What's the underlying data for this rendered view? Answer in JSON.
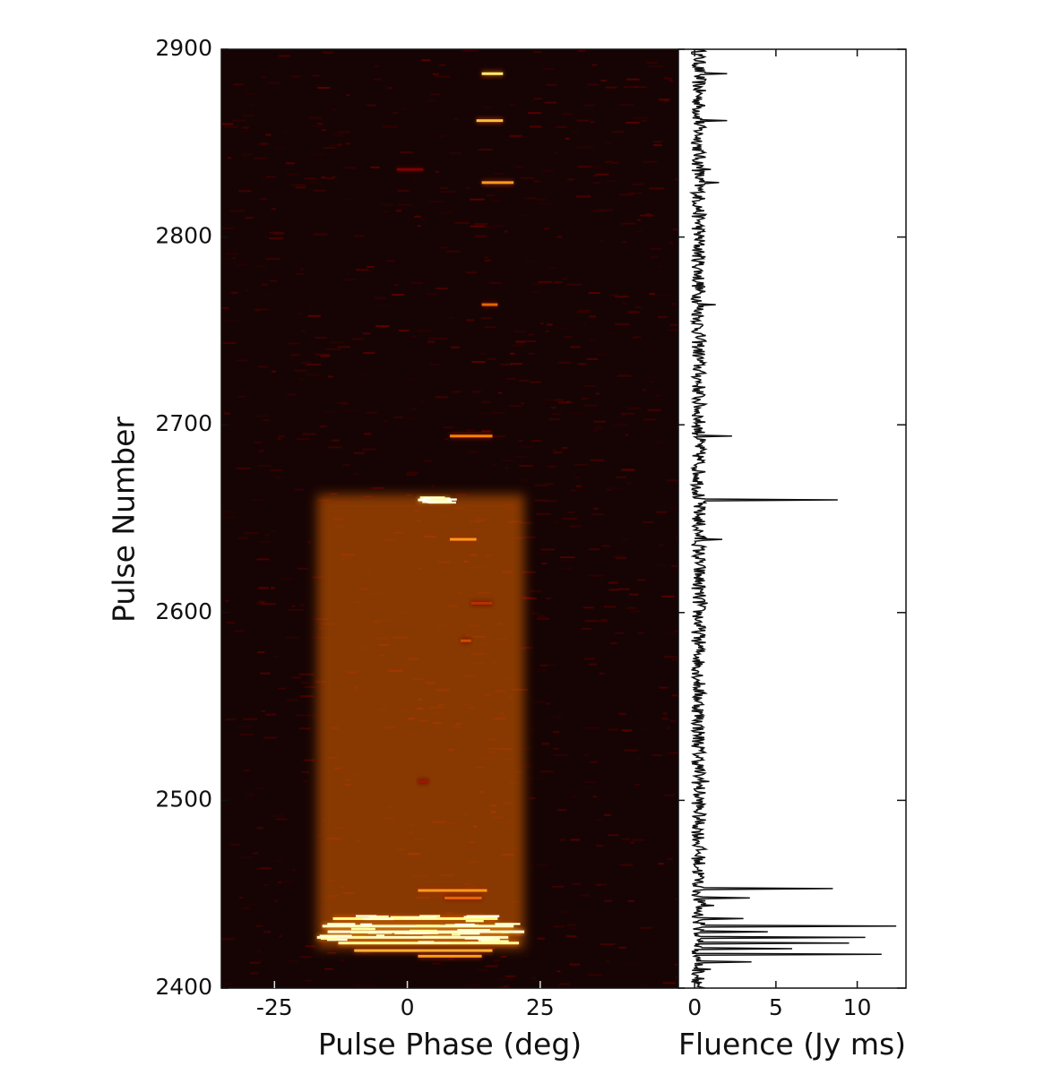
{
  "chart_data": [
    {
      "type": "heatmap",
      "xlabel": "Pulse Phase (deg)",
      "ylabel": "Pulse Number",
      "xlim": [
        -35,
        51
      ],
      "ylim": [
        2400,
        2900
      ],
      "xticks": [
        -25,
        0,
        25
      ],
      "yticks": [
        2400,
        2500,
        2600,
        2700,
        2800,
        2900
      ],
      "colormap": "afmhot",
      "background_color": "#160404",
      "bursts": [
        {
          "pulse": 2887,
          "phase_start": 14,
          "phase_end": 18,
          "intensity": 0.72
        },
        {
          "pulse": 2862,
          "phase_start": 13,
          "phase_end": 18,
          "intensity": 0.62
        },
        {
          "pulse": 2836,
          "phase_start": -2,
          "phase_end": 3,
          "intensity": 0.25
        },
        {
          "pulse": 2829,
          "phase_start": 14,
          "phase_end": 20,
          "intensity": 0.55
        },
        {
          "pulse": 2764,
          "phase_start": 14,
          "phase_end": 17,
          "intensity": 0.45
        },
        {
          "pulse": 2694,
          "phase_start": 8,
          "phase_end": 16,
          "intensity": 0.5
        },
        {
          "pulse": 2660,
          "phase_start": 2,
          "phase_end": 8,
          "intensity": 1.0
        },
        {
          "pulse": 2639,
          "phase_start": 8,
          "phase_end": 13,
          "intensity": 0.55
        },
        {
          "pulse": 2605,
          "phase_start": 12,
          "phase_end": 16,
          "intensity": 0.35
        },
        {
          "pulse": 2585,
          "phase_start": 10,
          "phase_end": 12,
          "intensity": 0.4
        },
        {
          "pulse": 2510,
          "phase_start": 2,
          "phase_end": 4,
          "intensity": 0.3
        },
        {
          "pulse": 2452,
          "phase_start": 2,
          "phase_end": 15,
          "intensity": 0.55
        },
        {
          "pulse": 2448,
          "phase_start": 7,
          "phase_end": 14,
          "intensity": 0.45
        },
        {
          "pulse": 2437,
          "phase_start": -14,
          "phase_end": 17,
          "intensity": 0.75
        },
        {
          "pulse": 2433,
          "phase_start": -16,
          "phase_end": 20,
          "intensity": 0.9
        },
        {
          "pulse": 2430,
          "phase_start": -15,
          "phase_end": 22,
          "intensity": 0.95
        },
        {
          "pulse": 2427,
          "phase_start": -17,
          "phase_end": 19,
          "intensity": 0.9
        },
        {
          "pulse": 2424,
          "phase_start": -13,
          "phase_end": 21,
          "intensity": 0.8
        },
        {
          "pulse": 2420,
          "phase_start": -10,
          "phase_end": 16,
          "intensity": 0.6
        },
        {
          "pulse": 2417,
          "phase_start": 2,
          "phase_end": 14,
          "intensity": 0.55
        }
      ]
    },
    {
      "type": "line",
      "xlabel": "Fluence (Jy ms)",
      "xlim": [
        -1,
        13
      ],
      "ylim": [
        2400,
        2900
      ],
      "xticks": [
        0,
        5,
        10
      ],
      "yticks": [
        2400,
        2500,
        2600,
        2700,
        2800,
        2900
      ],
      "line_color": "#111111",
      "baseline_fluence": 0.25,
      "peaks": [
        {
          "pulse": 2887,
          "fluence": 2.0
        },
        {
          "pulse": 2862,
          "fluence": 2.0
        },
        {
          "pulse": 2836,
          "fluence": 1.0
        },
        {
          "pulse": 2829,
          "fluence": 1.5
        },
        {
          "pulse": 2764,
          "fluence": 1.3
        },
        {
          "pulse": 2694,
          "fluence": 2.3
        },
        {
          "pulse": 2660,
          "fluence": 8.8
        },
        {
          "pulse": 2639,
          "fluence": 1.7
        },
        {
          "pulse": 2605,
          "fluence": 0.8
        },
        {
          "pulse": 2510,
          "fluence": 0.9
        },
        {
          "pulse": 2453,
          "fluence": 8.5
        },
        {
          "pulse": 2448,
          "fluence": 3.4
        },
        {
          "pulse": 2444,
          "fluence": 1.2
        },
        {
          "pulse": 2437,
          "fluence": 3.0
        },
        {
          "pulse": 2433,
          "fluence": 12.4
        },
        {
          "pulse": 2430,
          "fluence": 4.5
        },
        {
          "pulse": 2427,
          "fluence": 10.5
        },
        {
          "pulse": 2424,
          "fluence": 9.5
        },
        {
          "pulse": 2421,
          "fluence": 6.0
        },
        {
          "pulse": 2418,
          "fluence": 11.5
        },
        {
          "pulse": 2414,
          "fluence": 3.5
        },
        {
          "pulse": 2410,
          "fluence": 1.0
        },
        {
          "pulse": 2405,
          "fluence": 0.6
        }
      ]
    }
  ]
}
